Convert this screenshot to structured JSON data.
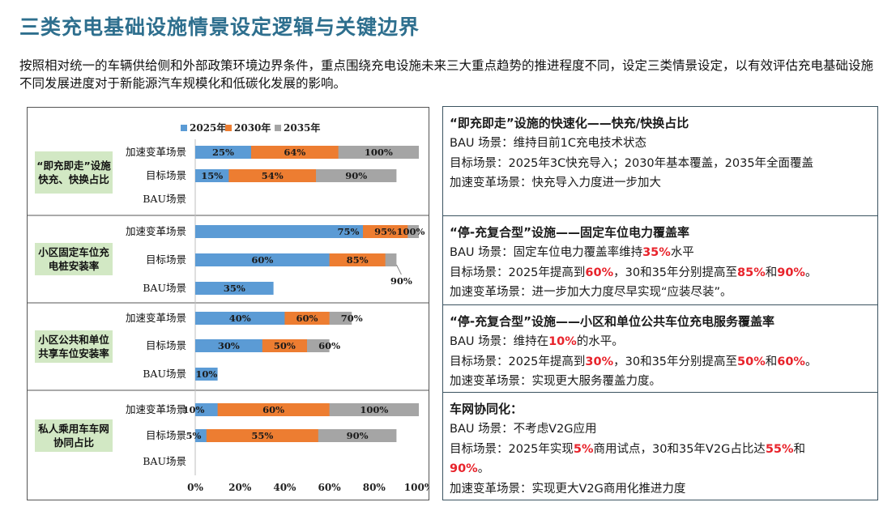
{
  "title": "三类充电基础设施情景设定逻辑与关键边界",
  "intro": "按照相对统一的车辆供给侧和外部政策环境边界条件，重点围绕充电设施未来三大重点趋势的推进程度不同，设定三类情景设定，以有效评估充电基础设施不同发展进度对于新能源汽车规模化和低碳化发展的影响。",
  "groups": [
    "“即充即走”设施快充、快换占比",
    "小区固定车位充电桩安装率",
    "小区公共和单位共享车位安装率",
    "私人乘用车车网协同占比"
  ],
  "chart_data": {
    "type": "bar",
    "orientation": "horizontal",
    "stacked": "overlapping",
    "legend": [
      "2025年",
      "2030年",
      "2035年"
    ],
    "legend_position": "top",
    "colors": [
      "#5b9bd5",
      "#ed7d31",
      "#a5a5a5"
    ],
    "xlim": [
      0,
      100
    ],
    "xticks": [
      "0%",
      "20%",
      "40%",
      "60%",
      "80%",
      "100%"
    ],
    "categories": [
      "加速变革场景",
      "目标场景",
      "BAU场景"
    ],
    "rows": [
      {
        "group": 0,
        "scenario": "加速变革场景",
        "values": [
          25,
          64,
          100
        ],
        "labels": [
          "25%",
          "64%",
          "100%"
        ]
      },
      {
        "group": 0,
        "scenario": "目标场景",
        "values": [
          15,
          54,
          90
        ],
        "labels": [
          "15%",
          "54%",
          "90%"
        ]
      },
      {
        "group": 0,
        "scenario": "BAU场景",
        "values": [],
        "labels": []
      },
      {
        "group": 1,
        "scenario": "加速变革场景",
        "values": [
          75,
          95,
          100
        ],
        "labels": [
          "75%",
          "95%",
          "100%"
        ]
      },
      {
        "group": 1,
        "scenario": "目标场景",
        "values": [
          60,
          85,
          90
        ],
        "labels": [
          "60%",
          "85%",
          "90%"
        ]
      },
      {
        "group": 1,
        "scenario": "BAU场景",
        "values": [
          35
        ],
        "labels": [
          "35%"
        ]
      },
      {
        "group": 2,
        "scenario": "加速变革场景",
        "values": [
          40,
          60,
          70
        ],
        "labels": [
          "40%",
          "60%",
          "70%"
        ]
      },
      {
        "group": 2,
        "scenario": "目标场景",
        "values": [
          30,
          50,
          60
        ],
        "labels": [
          "30%",
          "50%",
          "60%"
        ]
      },
      {
        "group": 2,
        "scenario": "BAU场景",
        "values": [
          10
        ],
        "labels": [
          "10%"
        ]
      },
      {
        "group": 3,
        "scenario": "加速变革场景",
        "values": [
          10,
          60,
          100
        ],
        "labels": [
          "10%",
          "60%",
          "100%"
        ]
      },
      {
        "group": 3,
        "scenario": "目标场景",
        "values": [
          5,
          55,
          90
        ],
        "labels": [
          "5%",
          "55%",
          "90%"
        ]
      },
      {
        "group": 3,
        "scenario": "BAU场景",
        "values": [],
        "labels": []
      }
    ]
  },
  "right_panel": [
    {
      "heading": "“即充即走”设施的快速化——快充/快换占比",
      "lines": [
        [
          {
            "t": "BAU 场景：维持目前1C充电技术状态"
          }
        ],
        [
          {
            "t": "目标场景：2025年3C快充导入；2030年基本覆盖，2035年全面覆盖"
          }
        ],
        [
          {
            "t": "加速变革场景：快充导入力度进一步加大"
          }
        ]
      ]
    },
    {
      "heading": "“停-充复合型”设施——固定车位电力覆盖率",
      "lines": [
        [
          {
            "t": "BAU 场景：固定车位电力覆盖率维持"
          },
          {
            "t": "35%",
            "red": true
          },
          {
            "t": "水平"
          }
        ],
        [
          {
            "t": "目标场景：2025年提高到"
          },
          {
            "t": "60%",
            "red": true
          },
          {
            "t": "，30和35年分别提高至"
          },
          {
            "t": "85%",
            "red": true
          },
          {
            "t": "和"
          },
          {
            "t": "90%",
            "red": true
          },
          {
            "t": "。"
          }
        ],
        [
          {
            "t": "加速变革场景：进一步加大力度尽早实现“应装尽装”。"
          }
        ]
      ]
    },
    {
      "heading": "“停-充复合型”设施——小区和单位公共车位充电服务覆盖率",
      "lines": [
        [
          {
            "t": "BAU 场景：维持在"
          },
          {
            "t": "10%",
            "red": true
          },
          {
            "t": "的水平。"
          }
        ],
        [
          {
            "t": "目标场景：2025年提高到"
          },
          {
            "t": "30%",
            "red": true
          },
          {
            "t": "，30和35年分别提高至"
          },
          {
            "t": "50%",
            "red": true
          },
          {
            "t": "和"
          },
          {
            "t": "60%",
            "red": true
          },
          {
            "t": "。"
          }
        ],
        [
          {
            "t": "加速变革场景：实现更大服务覆盖力度。"
          }
        ]
      ]
    },
    {
      "heading": "车网协同化：",
      "lines": [
        [
          {
            "t": "BAU 场景：不考虑V2G应用"
          }
        ],
        [
          {
            "t": "目标场景：2025年实现"
          },
          {
            "t": "5%",
            "red": true
          },
          {
            "t": "商用试点，30和35年V2G占比达"
          },
          {
            "t": "55%",
            "red": true
          },
          {
            "t": "和"
          }
        ],
        [
          {
            "t": "90%",
            "red": true
          },
          {
            "t": "。"
          }
        ],
        [
          {
            "t": "加速变革场景：实现更大V2G商用化推进力度"
          }
        ]
      ]
    }
  ]
}
